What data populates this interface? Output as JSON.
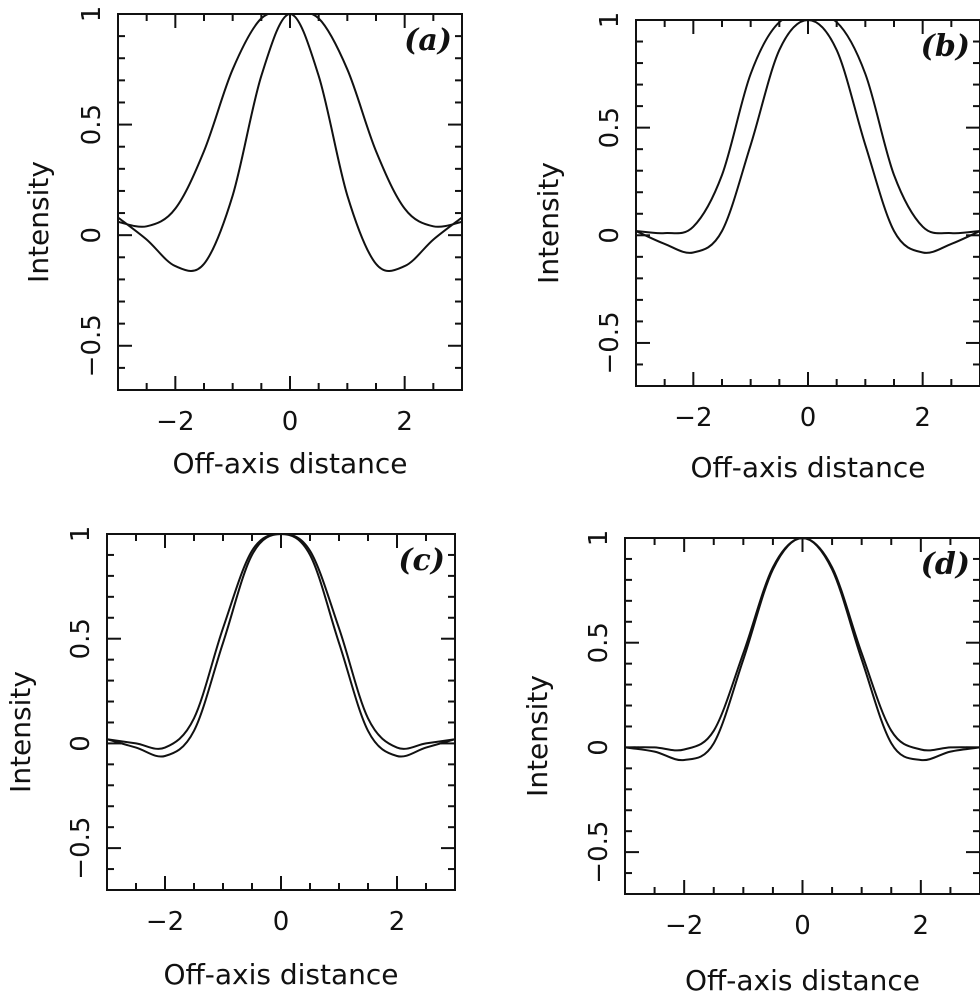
{
  "chart_data": [
    {
      "type": "line",
      "panel_label": "(a)",
      "xlabel": "Off-axis distance",
      "ylabel": "Intensity",
      "xlim": [
        -3,
        3
      ],
      "ylim": [
        -0.7,
        1.0
      ],
      "xticks": [
        -2,
        0,
        2
      ],
      "xtick_labels": [
        "−2",
        "0",
        "2"
      ],
      "yticks": [
        -0.5,
        0,
        0.5,
        1
      ],
      "ytick_labels": [
        "−0.5",
        "0",
        "0.5",
        "1"
      ],
      "series": [
        {
          "x": [
            -3,
            -2.5,
            -2.0,
            -1.5,
            -1.0,
            -0.5,
            0.0,
            0.5,
            1.0,
            1.5,
            2.0,
            2.5,
            3.0
          ],
          "y": [
            0.06,
            0.04,
            0.12,
            0.38,
            0.75,
            0.98,
            1.0,
            0.98,
            0.75,
            0.38,
            0.12,
            0.04,
            0.06
          ]
        },
        {
          "x": [
            -3,
            -2.5,
            -2.0,
            -1.5,
            -1.0,
            -0.5,
            0.0,
            0.5,
            1.0,
            1.5,
            2.0,
            2.5,
            3.0
          ],
          "y": [
            0.08,
            -0.02,
            -0.14,
            -0.13,
            0.18,
            0.72,
            1.0,
            0.72,
            0.18,
            -0.13,
            -0.14,
            -0.02,
            0.08
          ]
        }
      ]
    },
    {
      "type": "line",
      "panel_label": "(b)",
      "xlabel": "Off-axis distance",
      "ylabel": "Intensity",
      "xlim": [
        -3,
        3
      ],
      "ylim": [
        -0.7,
        1.0
      ],
      "xticks": [
        -2,
        0,
        2
      ],
      "xtick_labels": [
        "−2",
        "0",
        "2"
      ],
      "yticks": [
        -0.5,
        0,
        0.5,
        1
      ],
      "ytick_labels": [
        "−0.5",
        "0",
        "0.5",
        "1"
      ],
      "series": [
        {
          "x": [
            -3,
            -2.5,
            -2.0,
            -1.5,
            -1.0,
            -0.5,
            0.0,
            0.5,
            1.0,
            1.5,
            2.0,
            2.5,
            3.0
          ],
          "y": [
            0.02,
            0.01,
            0.04,
            0.28,
            0.75,
            0.99,
            1.0,
            0.99,
            0.75,
            0.28,
            0.04,
            0.01,
            0.02
          ]
        },
        {
          "x": [
            -3,
            -2.5,
            -2.0,
            -1.5,
            -1.0,
            -0.5,
            0.0,
            0.5,
            1.0,
            1.5,
            2.0,
            2.5,
            3.0
          ],
          "y": [
            0.02,
            -0.04,
            -0.08,
            0.02,
            0.42,
            0.86,
            1.0,
            0.86,
            0.42,
            0.02,
            -0.08,
            -0.04,
            0.02
          ]
        }
      ]
    },
    {
      "type": "line",
      "panel_label": "(c)",
      "xlabel": "Off-axis distance",
      "ylabel": "Intensity",
      "xlim": [
        -3,
        3
      ],
      "ylim": [
        -0.7,
        1.0
      ],
      "xticks": [
        -2,
        0,
        2
      ],
      "xtick_labels": [
        "−2",
        "0",
        "2"
      ],
      "yticks": [
        -0.5,
        0,
        0.5,
        1
      ],
      "ytick_labels": [
        "−0.5",
        "0",
        "0.5",
        "1"
      ],
      "series": [
        {
          "x": [
            -3,
            -2.5,
            -2.0,
            -1.5,
            -1.0,
            -0.5,
            0.0,
            0.5,
            1.0,
            1.5,
            2.0,
            2.5,
            3.0
          ],
          "y": [
            0.02,
            0.0,
            -0.02,
            0.12,
            0.55,
            0.92,
            1.0,
            0.92,
            0.55,
            0.12,
            -0.02,
            0.0,
            0.02
          ]
        },
        {
          "x": [
            -3,
            -2.5,
            -2.0,
            -1.5,
            -1.0,
            -0.5,
            0.0,
            0.5,
            1.0,
            1.5,
            2.0,
            2.5,
            3.0
          ],
          "y": [
            0.02,
            -0.02,
            -0.06,
            0.06,
            0.48,
            0.9,
            1.0,
            0.9,
            0.48,
            0.06,
            -0.06,
            -0.02,
            0.02
          ]
        }
      ]
    },
    {
      "type": "line",
      "panel_label": "(d)",
      "xlabel": "Off-axis distance",
      "ylabel": "Intensity",
      "xlim": [
        -3,
        3
      ],
      "ylim": [
        -0.7,
        1.0
      ],
      "xticks": [
        -2,
        0,
        2
      ],
      "xtick_labels": [
        "−2",
        "0",
        "2"
      ],
      "yticks": [
        -0.5,
        0,
        0.5,
        1
      ],
      "ytick_labels": [
        "−0.5",
        "0",
        "0.5",
        "1"
      ],
      "series": [
        {
          "x": [
            -3,
            -2.5,
            -2.0,
            -1.5,
            -1.0,
            -0.5,
            0.0,
            0.5,
            1.0,
            1.5,
            2.0,
            2.5,
            3.0
          ],
          "y": [
            0.0,
            0.0,
            -0.01,
            0.08,
            0.45,
            0.86,
            1.0,
            0.86,
            0.45,
            0.08,
            -0.01,
            0.0,
            0.0
          ]
        },
        {
          "x": [
            -3,
            -2.5,
            -2.0,
            -1.5,
            -1.0,
            -0.5,
            0.0,
            0.5,
            1.0,
            1.5,
            2.0,
            2.5,
            3.0
          ],
          "y": [
            0.0,
            -0.02,
            -0.06,
            0.02,
            0.42,
            0.85,
            1.0,
            0.85,
            0.42,
            0.02,
            -0.06,
            -0.02,
            0.0
          ]
        }
      ]
    }
  ]
}
